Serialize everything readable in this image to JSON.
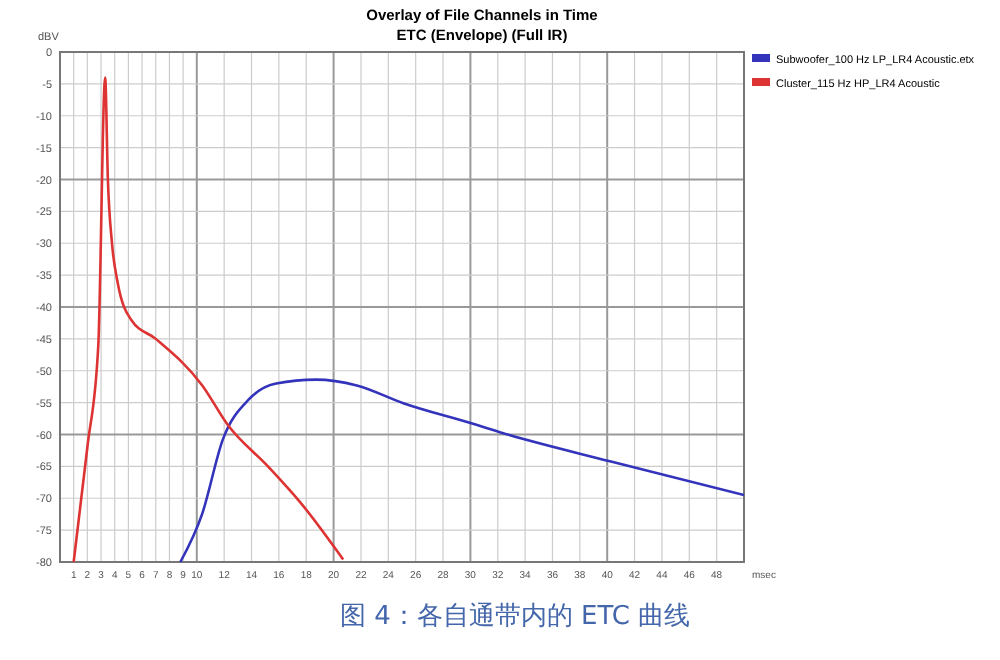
{
  "chart_data": {
    "type": "line",
    "title": "Overlay of File Channels in Time",
    "subtitle": "ETC (Envelope) (Full IR)",
    "xlabel": "msec",
    "ylabel": "dBV",
    "annotations": [
      "图 4：各自通带内的 ETC 曲线"
    ],
    "xlim": [
      0,
      50
    ],
    "ylim": [
      -80,
      0
    ],
    "xticks": [
      1,
      2,
      3,
      4,
      5,
      6,
      7,
      8,
      9,
      10,
      12,
      14,
      16,
      18,
      20,
      22,
      24,
      26,
      28,
      30,
      32,
      34,
      36,
      38,
      40,
      42,
      44,
      46,
      48
    ],
    "yticks": [
      0,
      -5,
      -10,
      -15,
      -20,
      -25,
      -30,
      -35,
      -40,
      -45,
      -50,
      -55,
      -60,
      -65,
      -70,
      -75,
      -80
    ],
    "grid": true,
    "legend": "right",
    "marker": "none",
    "line_style": "solid",
    "series": [
      {
        "name": "Subwoofer_100 Hz LP_LR4 Acoustic.etx",
        "color": "#3333bb",
        "x": [
          8.8,
          10.4,
          11.9,
          13.8,
          15.8,
          18.7,
          21.7,
          25.1,
          30,
          32.4,
          40.2,
          50
        ],
        "values": [
          -80,
          -72.4,
          -60.8,
          -54.5,
          -52,
          -51.4,
          -52.3,
          -55.1,
          -58.2,
          -59.8,
          -64.2,
          -69.5
        ]
      },
      {
        "name": "Cluster_115 Hz HP_LR4 Acoustic",
        "color": "#dd3333",
        "x": [
          1,
          2,
          2.8,
          3.3,
          3.5,
          3.8,
          4.2,
          5.2,
          7,
          10.4,
          12.3,
          15.2,
          17.7,
          20.7
        ],
        "values": [
          -80,
          -62,
          -46,
          -4,
          -20,
          -30,
          -36,
          -42,
          -45,
          -52.3,
          -58.6,
          -65,
          -71,
          -79.6
        ]
      }
    ]
  }
}
